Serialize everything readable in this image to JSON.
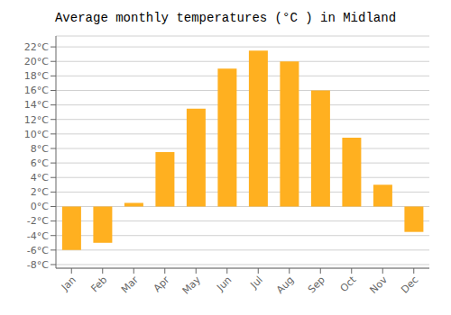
{
  "chart_data": {
    "type": "bar",
    "title": "Average monthly temperatures (°C ) in Midland",
    "categories": [
      "Jan",
      "Feb",
      "Mar",
      "Apr",
      "May",
      "Jun",
      "Jul",
      "Aug",
      "Sep",
      "Oct",
      "Nov",
      "Dec"
    ],
    "values": [
      -6.0,
      -5.0,
      0.5,
      7.5,
      13.5,
      19.0,
      21.5,
      20.0,
      16.0,
      9.5,
      3.0,
      -3.5
    ],
    "color": "#FFB020",
    "ylim": [
      -8.5,
      23.5
    ],
    "yticks": [
      {
        "value": -8,
        "label": "-8°C"
      },
      {
        "value": -6,
        "label": "-6°C"
      },
      {
        "value": -4,
        "label": "-4°C"
      },
      {
        "value": -2,
        "label": "-2°C"
      },
      {
        "value": 0,
        "label": "0°C"
      },
      {
        "value": 2,
        "label": "2°C"
      },
      {
        "value": 4,
        "label": "4°C"
      },
      {
        "value": 6,
        "label": "6°C"
      },
      {
        "value": 8,
        "label": "8°C"
      },
      {
        "value": 10,
        "label": "10°C"
      },
      {
        "value": 12,
        "label": "12°C"
      },
      {
        "value": 14,
        "label": "14°C"
      },
      {
        "value": 16,
        "label": "16°C"
      },
      {
        "value": 18,
        "label": "18°C"
      },
      {
        "value": 20,
        "label": "20°C"
      },
      {
        "value": 22,
        "label": "22°C"
      }
    ],
    "grid": true
  }
}
